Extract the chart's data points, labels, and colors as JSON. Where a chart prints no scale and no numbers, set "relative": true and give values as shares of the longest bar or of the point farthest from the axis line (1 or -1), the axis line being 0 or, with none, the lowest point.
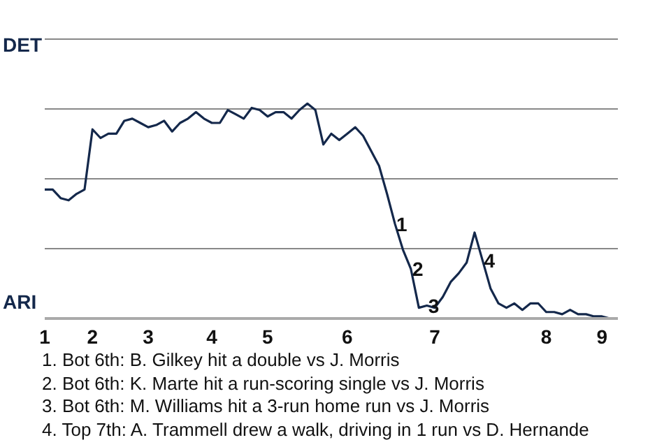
{
  "chart_data": {
    "type": "line",
    "relative": true,
    "categories": [
      "1",
      null,
      null,
      null,
      null,
      null,
      "2",
      null,
      null,
      null,
      null,
      null,
      null,
      "3",
      null,
      null,
      null,
      null,
      null,
      null,
      null,
      "4",
      null,
      null,
      null,
      null,
      null,
      null,
      "5",
      null,
      null,
      null,
      null,
      null,
      null,
      null,
      null,
      null,
      "6",
      null,
      null,
      null,
      null,
      null,
      null,
      null,
      null,
      null,
      null,
      "7",
      null,
      null,
      null,
      null,
      null,
      null,
      null,
      null,
      null,
      null,
      null,
      null,
      null,
      "8",
      null,
      null,
      null,
      null,
      null,
      null,
      "9",
      null,
      null
    ],
    "series": [
      {
        "color": "#14284b",
        "values": [
          0.6,
          0.6,
          0.56,
          0.55,
          0.58,
          0.6,
          0.88,
          0.84,
          0.86,
          0.86,
          0.92,
          0.93,
          0.91,
          0.89,
          0.9,
          0.92,
          0.87,
          0.91,
          0.93,
          0.96,
          0.93,
          0.91,
          0.91,
          0.97,
          0.95,
          0.93,
          0.98,
          0.97,
          0.94,
          0.96,
          0.96,
          0.93,
          0.97,
          1,
          0.97,
          0.81,
          0.86,
          0.83,
          0.86,
          0.89,
          0.85,
          0.78,
          0.71,
          0.58,
          0.44,
          0.32,
          0.23,
          0.05,
          0.06,
          0.05,
          0.1,
          0.17,
          0.21,
          0.26,
          0.4,
          0.27,
          0.14,
          0.07,
          0.05,
          0.07,
          0.04,
          0.07,
          0.07,
          0.03,
          0.03,
          0.02,
          0.04,
          0.02,
          0.02,
          0.01,
          0.01,
          0,
          0
        ],
        "name": null
      }
    ],
    "grid": "y",
    "marker": "none",
    "line_style": "solid",
    "annotations": [
      {
        "text": "1",
        "y": 0.44
      },
      {
        "text": "2",
        "y": 0.23
      },
      {
        "text": "3",
        "y": 0.06
      },
      {
        "text": "4",
        "y": 0.27
      },
      "DET",
      "ARI",
      "1. Bot 6th: B. Gilkey hit a double vs J. Morris",
      "2. Bot 6th: K. Marte hit a run-scoring single vs J. Morris",
      "3. Bot 6th: M. Williams hit a 3-run home run vs J. Morris",
      "4. Top 7th: A. Trammell drew a walk, driving in 1 run vs D. Hernande"
    ]
  }
}
